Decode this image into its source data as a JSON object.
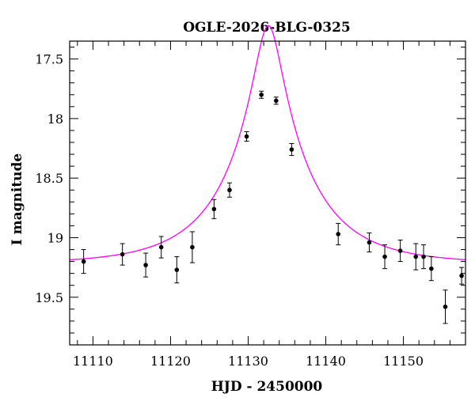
{
  "chart_data": {
    "type": "scatter",
    "title": "OGLE-2026-BLG-0325",
    "xlabel": "HJD - 2450000",
    "ylabel": "I magnitude",
    "xlim": [
      11107,
      11158
    ],
    "ylim": [
      19.9,
      17.35
    ],
    "y_inverted": true,
    "grid": false,
    "x_major_ticks": [
      11110,
      11120,
      11130,
      11140,
      11150
    ],
    "x_tick_labels": [
      "11110",
      "11120",
      "11130",
      "11140",
      "11150"
    ],
    "y_major_ticks": [
      17.5,
      18,
      18.5,
      19,
      19.5
    ],
    "y_tick_labels": [
      "17.5",
      "18",
      "18.5",
      "19",
      "19.5"
    ],
    "point_color": "#000000",
    "model_color": "#ff00ff",
    "points": [
      {
        "x": 11108.8,
        "y": 19.2,
        "err": 0.1
      },
      {
        "x": 11113.8,
        "y": 19.14,
        "err": 0.09
      },
      {
        "x": 11116.8,
        "y": 19.23,
        "err": 0.1
      },
      {
        "x": 11118.8,
        "y": 19.08,
        "err": 0.09
      },
      {
        "x": 11120.8,
        "y": 19.27,
        "err": 0.11
      },
      {
        "x": 11122.8,
        "y": 19.08,
        "err": 0.13
      },
      {
        "x": 11125.6,
        "y": 18.76,
        "err": 0.08
      },
      {
        "x": 11127.6,
        "y": 18.6,
        "err": 0.06
      },
      {
        "x": 11129.8,
        "y": 18.15,
        "err": 0.04
      },
      {
        "x": 11131.7,
        "y": 17.8,
        "err": 0.03
      },
      {
        "x": 11133.6,
        "y": 17.85,
        "err": 0.03
      },
      {
        "x": 11135.6,
        "y": 18.26,
        "err": 0.05
      },
      {
        "x": 11141.6,
        "y": 18.97,
        "err": 0.09
      },
      {
        "x": 11145.6,
        "y": 19.04,
        "err": 0.08
      },
      {
        "x": 11147.6,
        "y": 19.16,
        "err": 0.1
      },
      {
        "x": 11149.6,
        "y": 19.11,
        "err": 0.09
      },
      {
        "x": 11151.6,
        "y": 19.16,
        "err": 0.11
      },
      {
        "x": 11152.6,
        "y": 19.16,
        "err": 0.1
      },
      {
        "x": 11153.6,
        "y": 19.26,
        "err": 0.1
      },
      {
        "x": 11155.4,
        "y": 19.58,
        "err": 0.14
      },
      {
        "x": 11157.5,
        "y": 19.32,
        "err": 0.07
      }
    ],
    "model": {
      "type": "point-lens",
      "t0": 11132.6,
      "u0": 0.16,
      "tE": 10.4,
      "baseline_mag": 19.22
    }
  }
}
